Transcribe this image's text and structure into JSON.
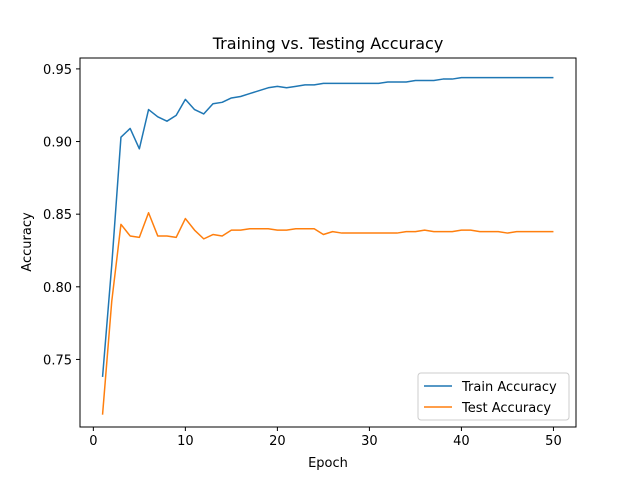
{
  "chart_data": {
    "type": "line",
    "title": "Training vs. Testing Accuracy",
    "xlabel": "Epoch",
    "ylabel": "Accuracy",
    "xlim": [
      -1.45,
      52.45
    ],
    "ylim": [
      0.7035,
      0.9575
    ],
    "xticks": [
      0,
      10,
      20,
      30,
      40,
      50
    ],
    "xtick_labels": [
      "0",
      "10",
      "20",
      "30",
      "40",
      "50"
    ],
    "yticks": [
      0.75,
      0.8,
      0.85,
      0.9,
      0.95
    ],
    "ytick_labels": [
      "0.75",
      "0.80",
      "0.85",
      "0.90",
      "0.95"
    ],
    "grid": false,
    "legend_position": "lower-right",
    "x": [
      1,
      2,
      3,
      4,
      5,
      6,
      7,
      8,
      9,
      10,
      11,
      12,
      13,
      14,
      15,
      16,
      17,
      18,
      19,
      20,
      21,
      22,
      23,
      24,
      25,
      26,
      27,
      28,
      29,
      30,
      31,
      32,
      33,
      34,
      35,
      36,
      37,
      38,
      39,
      40,
      41,
      42,
      43,
      44,
      45,
      46,
      47,
      48,
      49,
      50
    ],
    "series": [
      {
        "name": "Train Accuracy",
        "color": "#1f77b4",
        "values": [
          0.738,
          0.815,
          0.903,
          0.909,
          0.895,
          0.922,
          0.917,
          0.914,
          0.918,
          0.929,
          0.922,
          0.919,
          0.926,
          0.927,
          0.93,
          0.931,
          0.933,
          0.935,
          0.937,
          0.938,
          0.937,
          0.938,
          0.939,
          0.939,
          0.94,
          0.94,
          0.94,
          0.94,
          0.94,
          0.94,
          0.94,
          0.941,
          0.941,
          0.941,
          0.942,
          0.942,
          0.942,
          0.943,
          0.943,
          0.944,
          0.944,
          0.944,
          0.944,
          0.944,
          0.944,
          0.944,
          0.944,
          0.944,
          0.944,
          0.944
        ]
      },
      {
        "name": "Test Accuracy",
        "color": "#ff7f0e",
        "values": [
          0.712,
          0.79,
          0.843,
          0.835,
          0.834,
          0.851,
          0.835,
          0.835,
          0.834,
          0.847,
          0.839,
          0.833,
          0.836,
          0.835,
          0.839,
          0.839,
          0.84,
          0.84,
          0.84,
          0.839,
          0.839,
          0.84,
          0.84,
          0.84,
          0.836,
          0.838,
          0.837,
          0.837,
          0.837,
          0.837,
          0.837,
          0.837,
          0.837,
          0.838,
          0.838,
          0.839,
          0.838,
          0.838,
          0.838,
          0.839,
          0.839,
          0.838,
          0.838,
          0.838,
          0.837,
          0.838,
          0.838,
          0.838,
          0.838,
          0.838
        ]
      }
    ]
  }
}
